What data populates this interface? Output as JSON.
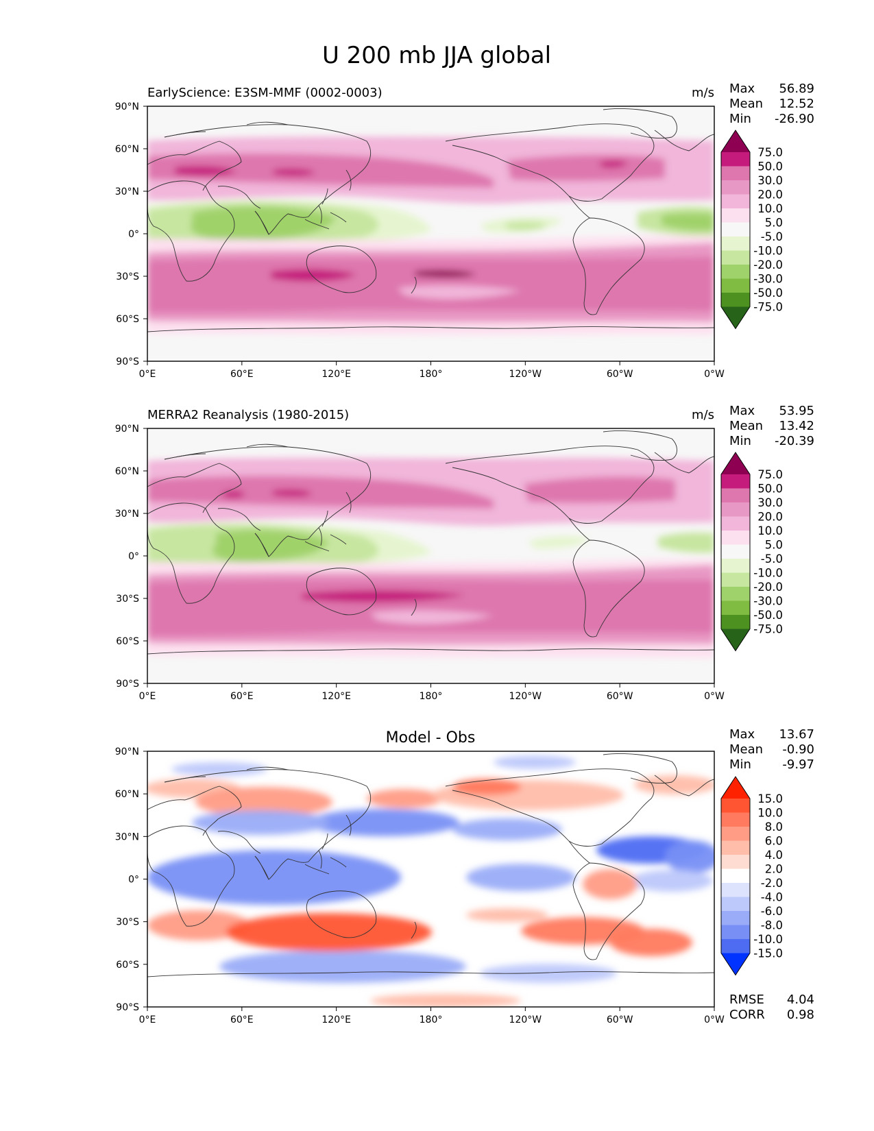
{
  "figure_title": "U 200 mb JJA global",
  "chart_data": [
    {
      "type": "heatmap",
      "title": "EarlyScience: E3SM-MMF (0002-0003)",
      "units": "m/s",
      "stats": {
        "Max": "56.89",
        "Mean": "12.52",
        "Min": "-26.90"
      },
      "x_ticks": [
        "0°E",
        "60°E",
        "120°E",
        "180°",
        "120°W",
        "60°W",
        "0°W"
      ],
      "y_ticks": [
        "90°N",
        "60°N",
        "30°N",
        "0°",
        "30°S",
        "60°S",
        "90°S"
      ],
      "xlim": [
        0,
        360
      ],
      "ylim": [
        -90,
        90
      ],
      "colorbar": {
        "labels": [
          "75.0",
          "50.0",
          "30.0",
          "20.0",
          "10.0",
          "5.0",
          "-5.0",
          "-10.0",
          "-20.0",
          "-30.0",
          "-50.0",
          "-75.0"
        ],
        "colors": [
          "#8e0152",
          "#c51b7d",
          "#de77ae",
          "#e898c4",
          "#f1b6da",
          "#fde0ef",
          "#f7f7f7",
          "#e6f5d0",
          "#c7e6a0",
          "#a0d26b",
          "#7fbc41",
          "#4d9221",
          "#276419"
        ]
      }
    },
    {
      "type": "heatmap",
      "title": "MERRA2 Reanalysis (1980-2015)",
      "units": "m/s",
      "stats": {
        "Max": "53.95",
        "Mean": "13.42",
        "Min": "-20.39"
      },
      "x_ticks": [
        "0°E",
        "60°E",
        "120°E",
        "180°",
        "120°W",
        "60°W",
        "0°W"
      ],
      "y_ticks": [
        "90°N",
        "60°N",
        "30°N",
        "0°",
        "30°S",
        "60°S",
        "90°S"
      ],
      "xlim": [
        0,
        360
      ],
      "ylim": [
        -90,
        90
      ],
      "colorbar": {
        "labels": [
          "75.0",
          "50.0",
          "30.0",
          "20.0",
          "10.0",
          "5.0",
          "-5.0",
          "-10.0",
          "-20.0",
          "-30.0",
          "-50.0",
          "-75.0"
        ],
        "colors": [
          "#8e0152",
          "#c51b7d",
          "#de77ae",
          "#e898c4",
          "#f1b6da",
          "#fde0ef",
          "#f7f7f7",
          "#e6f5d0",
          "#c7e6a0",
          "#a0d26b",
          "#7fbc41",
          "#4d9221",
          "#276419"
        ]
      }
    },
    {
      "type": "heatmap",
      "title": "Model - Obs",
      "stats": {
        "Max": "13.67",
        "Mean": "-0.90",
        "Min": "-9.97"
      },
      "metrics": {
        "RMSE": "4.04",
        "CORR": "0.98"
      },
      "x_ticks": [
        "0°E",
        "60°E",
        "120°E",
        "180°",
        "120°W",
        "60°W",
        "0°W"
      ],
      "y_ticks": [
        "90°N",
        "60°N",
        "30°N",
        "0°",
        "30°S",
        "60°S",
        "90°S"
      ],
      "xlim": [
        0,
        360
      ],
      "ylim": [
        -90,
        90
      ],
      "colorbar": {
        "labels": [
          "15.0",
          "10.0",
          "8.0",
          "6.0",
          "4.0",
          "2.0",
          "-2.0",
          "-4.0",
          "-6.0",
          "-8.0",
          "-10.0",
          "-15.0"
        ],
        "colors": [
          "#ff2200",
          "#ff5533",
          "#ff7a5e",
          "#ff9c85",
          "#ffbdaa",
          "#ffdcd2",
          "#ffffff",
          "#dde3fd",
          "#bdc8fb",
          "#9aacf8",
          "#7890f5",
          "#4d6cf2",
          "#0033ff"
        ]
      }
    }
  ],
  "colors": {
    "positive_ramp": [
      "#f7f7f7",
      "#fde0ef",
      "#f1b6da",
      "#e898c4",
      "#de77ae",
      "#c51b7d",
      "#8e0152"
    ],
    "negative_ramp": [
      "#f7f7f7",
      "#e6f5d0",
      "#c7e6a0",
      "#a0d26b",
      "#7fbc41"
    ],
    "diff_red": [
      "#ffffff",
      "#ffdcd2",
      "#ffbdaa",
      "#ff9c85",
      "#ff7a5e",
      "#ff5533"
    ],
    "diff_blue": [
      "#ffffff",
      "#dde3fd",
      "#bdc8fb",
      "#9aacf8",
      "#7890f5",
      "#4d6cf2"
    ],
    "coastline": "#333333"
  }
}
